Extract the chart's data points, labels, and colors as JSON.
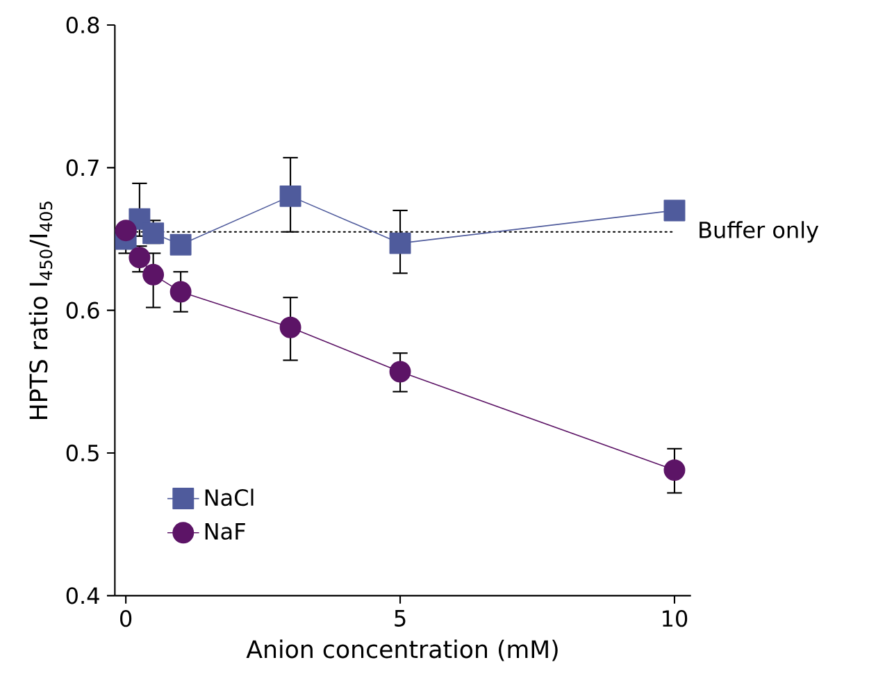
{
  "chart_data": {
    "type": "line",
    "xlabel": "Anion concentration (mM)",
    "ylabel": "HPTS ratio I$_{450}$/I$_{405}$",
    "x": [
      0,
      0.25,
      0.5,
      1,
      3,
      5,
      10
    ],
    "series": [
      {
        "name": "NaCl",
        "color": "#4f5b9c",
        "marker": "square",
        "values": [
          0.65,
          0.664,
          0.654,
          0.646,
          0.68,
          0.647,
          0.67
        ],
        "errors": [
          [
            0.64,
            0.66
          ],
          [
            0.652,
            0.689
          ],
          [
            0.647,
            0.663
          ],
          null,
          [
            0.655,
            0.707
          ],
          [
            0.626,
            0.67
          ],
          null
        ]
      },
      {
        "name": "NaF",
        "color": "#5c1466",
        "marker": "circle",
        "values": [
          0.656,
          0.637,
          0.625,
          0.613,
          0.588,
          0.557,
          0.488
        ],
        "errors": [
          null,
          [
            0.627,
            0.645
          ],
          [
            0.602,
            0.64
          ],
          [
            0.599,
            0.627
          ],
          [
            0.565,
            0.609
          ],
          [
            0.543,
            0.57
          ],
          [
            0.472,
            0.503
          ]
        ]
      }
    ],
    "xlim": [
      -0.2,
      10.3
    ],
    "ylim": [
      0.4,
      0.8
    ],
    "xticks": [
      0,
      5,
      10
    ],
    "yticks": [
      0.4,
      0.5,
      0.6,
      0.7,
      0.8
    ],
    "ref_lines": [
      {
        "axis": "y",
        "value": 0.655,
        "label": "Buffer only",
        "color": "#000000",
        "line_style": "dotted"
      }
    ],
    "legend": "bottom left",
    "grid": false
  }
}
